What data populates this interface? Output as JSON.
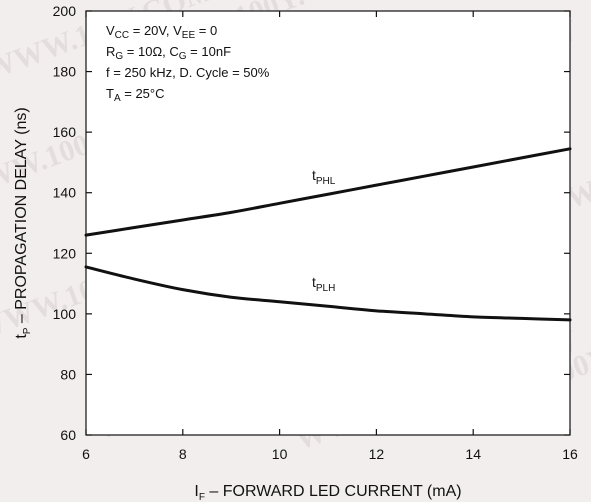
{
  "chart_data": {
    "type": "line",
    "xlabel": {
      "main": "I",
      "sub": "F",
      "rest": " – FORWARD LED CURRENT (mA)"
    },
    "ylabel": {
      "main": "t",
      "sub": "P",
      "rest": " – PROPAGATION DELAY (ns)"
    },
    "xlim": [
      6,
      16
    ],
    "ylim": [
      60,
      200
    ],
    "xticks": [
      "6",
      "8",
      "10",
      "12",
      "14",
      "16"
    ],
    "yticks": [
      "60",
      "80",
      "100",
      "120",
      "140",
      "160",
      "180",
      "200"
    ],
    "conditions": {
      "line1": {
        "a": "V",
        "a_sub": "CC",
        "b": " = 20V, V",
        "b_sub": "EE",
        "c": " = 0"
      },
      "line2": {
        "a": "R",
        "a_sub": "G",
        "b": " = 10Ω, C",
        "b_sub": "G",
        "c": " = 10nF"
      },
      "line3": "f = 250 kHz, D. Cycle = 50%",
      "line4": {
        "a": "T",
        "a_sub": "A",
        "b": " = 25°C"
      }
    },
    "series": [
      {
        "name": "t",
        "name_sub": "PHL",
        "x": [
          6,
          7,
          8,
          9,
          10,
          11,
          12,
          13,
          14,
          15,
          16
        ],
        "y": [
          126,
          128.5,
          131,
          133.5,
          136.5,
          139.5,
          142.5,
          145.5,
          148.5,
          151.5,
          154.5
        ]
      },
      {
        "name": "t",
        "name_sub": "PLH",
        "x": [
          6,
          7,
          8,
          9,
          10,
          11,
          12,
          13,
          14,
          15,
          16
        ],
        "y": [
          115.5,
          111.5,
          108,
          105.5,
          104,
          102.5,
          101,
          100,
          99,
          98.5,
          98
        ]
      }
    ],
    "grid": false
  },
  "watermark": "WWW.100Y.COM.TW"
}
